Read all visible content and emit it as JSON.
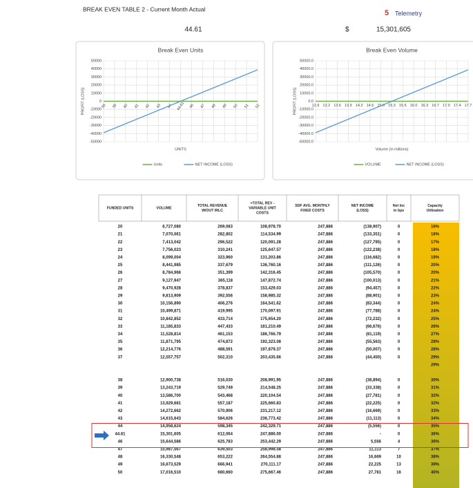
{
  "header": {
    "title": "BREAK EVEN TABLE 2 - Current Month Actual",
    "units": "44.61",
    "currency": "$",
    "volume": "15,301,605",
    "logo": "Telemetry"
  },
  "chart_data": [
    {
      "type": "line",
      "title": "Break Even Units",
      "x_label": "UNITS",
      "y_label": "PROFIT (LOSS)",
      "categories": [
        "38",
        "39",
        "40",
        "41",
        "42",
        "43",
        "44",
        "44.61",
        "46",
        "47",
        "48",
        "49",
        "50",
        "51",
        "52"
      ],
      "series": [
        {
          "name": "Units",
          "color": "#70ad47",
          "values": [
            0,
            0,
            0,
            0,
            0,
            0,
            0,
            0,
            0,
            0,
            0,
            0,
            0,
            0,
            0
          ]
        },
        {
          "name": "NET INCOME (LOSS)",
          "color": "#5b9bd5",
          "values": [
            -38894,
            -33338,
            -27781,
            -22225,
            -16669,
            -11113,
            -5556,
            0,
            5556,
            11113,
            16669,
            22225,
            27781,
            33338,
            38894
          ]
        }
      ],
      "ylim": [
        -50000,
        50000
      ],
      "yticks": [
        -50000,
        -40000,
        -30000,
        -20000,
        -10000,
        0,
        10000,
        20000,
        30000,
        40000,
        50000
      ],
      "grid": true
    },
    {
      "type": "line",
      "title": "Break Even Volume",
      "x_label": "Volume (in millions)",
      "y_label": "PROFIT (LOSS)",
      "categories": [
        "12.9",
        "13.2",
        "13.6",
        "13.9",
        "14.3",
        "14.6",
        "15.0",
        "15.3",
        "15.6",
        "16.0",
        "16.3",
        "16.7",
        "17.0",
        "17.4",
        "17.7"
      ],
      "series": [
        {
          "name": "VOLUME",
          "color": "#70ad47",
          "values": [
            0,
            0,
            0,
            0,
            0,
            0,
            0,
            0,
            0,
            0,
            0,
            0,
            0,
            0,
            0
          ]
        },
        {
          "name": "NET INCOME (LOSS)",
          "color": "#5b9bd5",
          "values": [
            -38894,
            -33338,
            -27781,
            -22225,
            -16669,
            -11113,
            -5556,
            0,
            5556,
            11113,
            16669,
            22225,
            27781,
            33338,
            38894
          ]
        }
      ],
      "ylim": [
        -50000,
        50000
      ],
      "yticks": [
        {
          "value": -50000,
          "label": "-50000.0"
        },
        {
          "value": -40000,
          "label": "-40000.0"
        },
        {
          "value": -30000,
          "label": "-30000.0"
        },
        {
          "value": -20000,
          "label": "-20000.0"
        },
        {
          "value": -10000,
          "label": "-10000.0"
        },
        {
          "value": 0,
          "label": "0.0"
        },
        {
          "value": 10000,
          "label": "10000.0"
        },
        {
          "value": 20000,
          "label": "20000.0"
        },
        {
          "value": 30000,
          "label": "30000.0"
        },
        {
          "value": 40000,
          "label": "40000.0"
        },
        {
          "value": 50000,
          "label": "50000.0"
        }
      ],
      "grid": true
    }
  ],
  "table": {
    "columns": [
      [
        "FUNDED UNITS"
      ],
      [
        "VOLUME"
      ],
      [
        "TOTAL REVENUE",
        "W/OUT IRLC"
      ],
      [
        "+TOTAL REV -",
        "VARIABLE UNIT",
        "COSTS"
      ],
      [
        "SDF AVG. MONTHLY",
        "FIXED COSTS"
      ],
      [
        "NET INCOME",
        "(LOSS)"
      ],
      [
        "Net Inc",
        "in bps"
      ],
      [
        "Capacity",
        "Utilization"
      ]
    ],
    "sections": [
      {
        "rows": [
          [
            "20",
            "6,727,080",
            "269,083",
            "108,978.70",
            "247,886",
            "(138,907)",
            "0",
            "16%"
          ],
          [
            "21",
            "7,070,061",
            "282,802",
            "114,534.99",
            "247,886",
            "(133,351)",
            "0",
            "16%"
          ],
          [
            "22",
            "7,413,042",
            "296,522",
            "120,091.28",
            "247,886",
            "(127,795)",
            "0",
            "17%"
          ],
          [
            "23",
            "7,756,023",
            "310,241",
            "125,647.57",
            "247,886",
            "(122,238)",
            "0",
            "18%"
          ],
          [
            "24",
            "8,099,004",
            "323,960",
            "131,203.86",
            "247,886",
            "(116,682)",
            "0",
            "19%"
          ],
          [
            "25",
            "8,441,985",
            "337,679",
            "136,760.16",
            "247,886",
            "(111,126)",
            "0",
            "20%"
          ],
          [
            "26",
            "8,784,966",
            "351,399",
            "142,316.45",
            "247,886",
            "(105,570)",
            "0",
            "20%"
          ],
          [
            "27",
            "9,127,947",
            "365,118",
            "147,872.74",
            "247,886",
            "(100,013)",
            "0",
            "21%"
          ],
          [
            "28",
            "9,470,928",
            "378,837",
            "153,429.03",
            "247,886",
            "(94,457)",
            "0",
            "22%"
          ],
          [
            "29",
            "9,813,909",
            "392,556",
            "158,985.32",
            "247,886",
            "(88,901)",
            "0",
            "23%"
          ],
          [
            "30",
            "10,156,890",
            "406,276",
            "164,541.62",
            "247,886",
            "(83,344)",
            "0",
            "24%"
          ],
          [
            "31",
            "10,499,871",
            "419,995",
            "170,097.91",
            "247,886",
            "(77,788)",
            "0",
            "24%"
          ],
          [
            "32",
            "10,842,852",
            "433,714",
            "175,654.20",
            "247,886",
            "(72,232)",
            "0",
            "25%"
          ],
          [
            "33",
            "11,185,833",
            "447,433",
            "181,210.49",
            "247,886",
            "(66,676)",
            "0",
            "26%"
          ],
          [
            "34",
            "11,528,814",
            "461,153",
            "186,766.79",
            "247,886",
            "(61,119)",
            "0",
            "27%"
          ],
          [
            "35",
            "11,871,795",
            "474,872",
            "192,323.08",
            "247,886",
            "(55,563)",
            "0",
            "28%"
          ],
          [
            "36",
            "12,214,776",
            "488,591",
            "197,879.37",
            "247,886",
            "(50,007)",
            "0",
            "28%"
          ],
          [
            "37",
            "12,557,757",
            "502,310",
            "203,435.66",
            "247,886",
            "(44,450)",
            "0",
            "29%"
          ]
        ],
        "trailing_capacity": "29%"
      },
      {
        "rows": [
          [
            "38",
            "12,900,738",
            "516,030",
            "208,991.95",
            "247,886",
            "(38,894)",
            "0",
            "30%"
          ],
          [
            "39",
            "13,243,719",
            "529,749",
            "214,548.25",
            "247,886",
            "(33,338)",
            "0",
            "31%"
          ],
          [
            "40",
            "13,586,700",
            "543,468",
            "220,104.54",
            "247,886",
            "(27,781)",
            "0",
            "32%"
          ],
          [
            "41",
            "13,929,681",
            "557,187",
            "225,660.83",
            "247,886",
            "(22,225)",
            "0",
            "32%"
          ],
          [
            "42",
            "14,272,662",
            "570,906",
            "231,217.12",
            "247,886",
            "(16,669)",
            "0",
            "33%"
          ],
          [
            "43",
            "14,615,643",
            "584,626",
            "236,773.42",
            "247,886",
            "(11,113)",
            "0",
            "34%"
          ],
          [
            "44",
            "14,958,624",
            "598,345",
            "242,329.71",
            "247,886",
            "(5,556)",
            "0",
            "35%"
          ],
          [
            "44.61",
            "15,301,605",
            "612,064",
            "247,886.00",
            "247,886",
            "-",
            "0",
            "36%"
          ],
          [
            "46",
            "15,644,586",
            "625,783",
            "253,442.29",
            "247,886",
            "5,556",
            "4",
            "36%"
          ],
          [
            "47",
            "15,987,567",
            "639,503",
            "258,998.58",
            "247,886",
            "11,113",
            "7",
            "37%"
          ],
          [
            "48",
            "16,330,548",
            "653,222",
            "264,554.88",
            "247,886",
            "16,669",
            "10",
            "38%"
          ],
          [
            "49",
            "16,673,529",
            "666,941",
            "270,111.17",
            "247,886",
            "22,225",
            "13",
            "39%"
          ],
          [
            "50",
            "17,016,510",
            "680,660",
            "275,667.46",
            "247,886",
            "27,781",
            "16",
            "40%"
          ]
        ]
      }
    ]
  }
}
